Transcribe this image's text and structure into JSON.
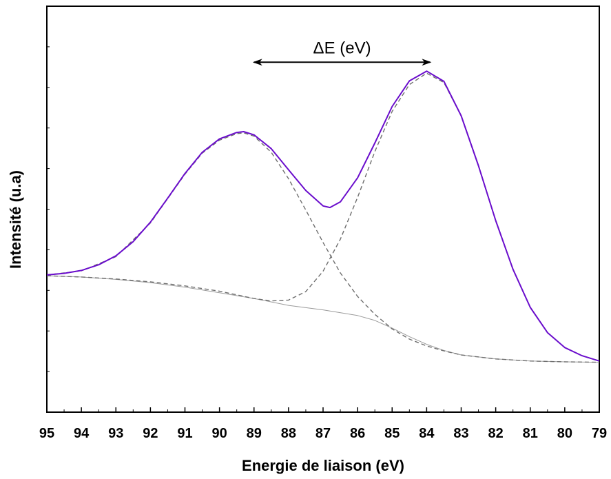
{
  "chart_data": {
    "type": "line",
    "xlabel": "Energie de liaison (eV)",
    "ylabel": "Intensité (u.a)",
    "xlim": [
      95,
      79
    ],
    "x_reversed": true,
    "ylim": [
      0,
      1
    ],
    "y_ticks_unlabeled": true,
    "grid": false,
    "x_ticks": [
      95,
      94,
      93,
      92,
      91,
      90,
      89,
      88,
      87,
      86,
      85,
      84,
      83,
      82,
      81,
      80,
      79
    ],
    "annotation": {
      "text": "ΔE (eV)",
      "arrow_from": 89.0,
      "arrow_to": 83.9,
      "y": 0.862
    },
    "colors": {
      "envelope": "#6a0dcc",
      "components": "#6e6e6e",
      "background": "#9a9a9a"
    },
    "series": [
      {
        "style": "solid",
        "color_key": "envelope",
        "x": [
          95,
          94.5,
          94,
          93.5,
          93,
          92.5,
          92,
          91.5,
          91,
          90.5,
          90,
          89.5,
          89.3,
          89,
          88.5,
          88,
          87.5,
          87,
          86.8,
          86.5,
          86,
          85.5,
          85,
          84.5,
          84,
          83.5,
          83,
          82.5,
          82,
          81.5,
          81,
          80.5,
          80,
          79.5,
          79
        ],
        "y": [
          0.338,
          0.342,
          0.349,
          0.363,
          0.385,
          0.42,
          0.468,
          0.527,
          0.588,
          0.64,
          0.673,
          0.689,
          0.691,
          0.683,
          0.649,
          0.597,
          0.546,
          0.508,
          0.504,
          0.518,
          0.577,
          0.663,
          0.753,
          0.816,
          0.84,
          0.815,
          0.73,
          0.607,
          0.472,
          0.352,
          0.258,
          0.196,
          0.159,
          0.139,
          0.126
        ]
      },
      {
        "style": "dashed",
        "color_key": "components",
        "x": [
          95,
          94,
          93,
          92,
          91,
          90.5,
          90,
          89.5,
          89.3,
          89,
          88.5,
          88,
          87.5,
          87,
          86.5,
          86,
          85.5,
          85,
          84.5,
          84,
          83.5,
          83,
          82,
          81,
          80,
          79
        ],
        "y": [
          0.338,
          0.348,
          0.383,
          0.466,
          0.586,
          0.638,
          0.67,
          0.686,
          0.688,
          0.68,
          0.64,
          0.575,
          0.498,
          0.418,
          0.343,
          0.285,
          0.241,
          0.205,
          0.18,
          0.163,
          0.151,
          0.141,
          0.131,
          0.126,
          0.124,
          0.123
        ]
      },
      {
        "style": "dashed",
        "color_key": "components",
        "x": [
          95,
          94,
          93,
          92,
          91,
          90,
          89.5,
          89,
          88.5,
          88,
          87.5,
          87,
          86.5,
          86,
          85.5,
          85,
          84.5,
          84,
          83.5,
          83,
          82.5,
          82,
          81.5,
          81,
          80.5,
          80,
          79.5,
          79
        ],
        "y": [
          0.336,
          0.333,
          0.328,
          0.321,
          0.311,
          0.298,
          0.289,
          0.28,
          0.274,
          0.276,
          0.297,
          0.347,
          0.426,
          0.529,
          0.642,
          0.741,
          0.807,
          0.835,
          0.812,
          0.73,
          0.607,
          0.472,
          0.352,
          0.258,
          0.196,
          0.159,
          0.139,
          0.126
        ]
      },
      {
        "style": "solid",
        "color_key": "background",
        "x": [
          95,
          94,
          93,
          92,
          91,
          90,
          89,
          88,
          87,
          86,
          85.5,
          85,
          84.5,
          84,
          83.5,
          83,
          82,
          81,
          80,
          79
        ],
        "y": [
          0.336,
          0.333,
          0.327,
          0.319,
          0.308,
          0.294,
          0.28,
          0.263,
          0.252,
          0.238,
          0.226,
          0.207,
          0.186,
          0.167,
          0.152,
          0.141,
          0.131,
          0.126,
          0.124,
          0.123
        ]
      }
    ]
  }
}
